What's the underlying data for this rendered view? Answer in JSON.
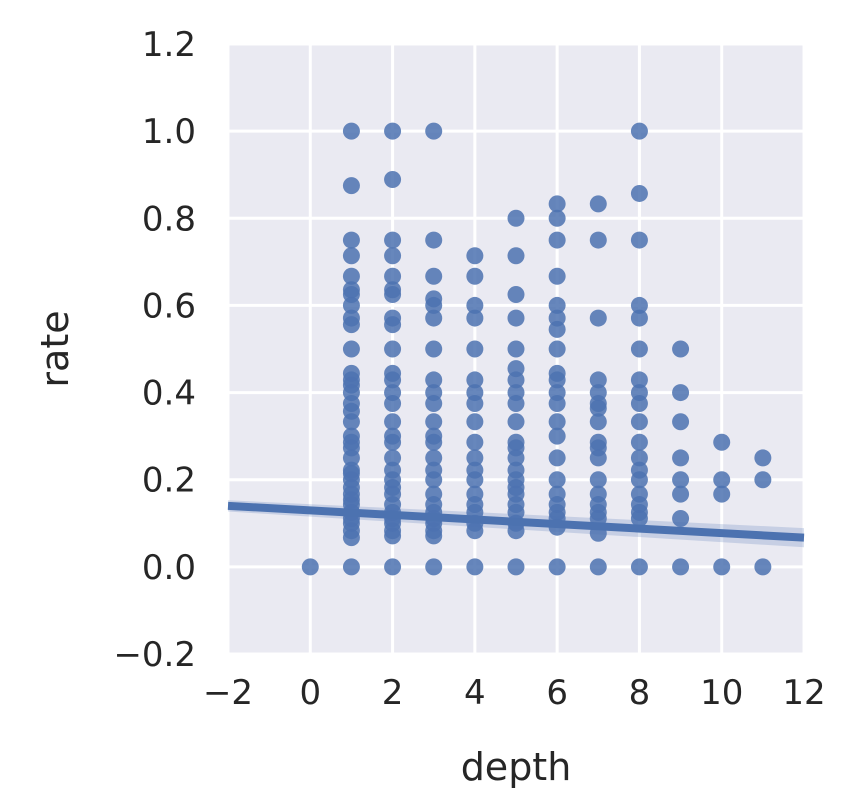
{
  "chart_data": {
    "type": "scatter",
    "xlabel": "depth",
    "ylabel": "rate",
    "xlim": [
      -2,
      12
    ],
    "ylim": [
      -0.2,
      1.2
    ],
    "xticks": [
      -2,
      0,
      2,
      4,
      6,
      8,
      10,
      12
    ],
    "yticks": [
      -0.2,
      0.0,
      0.2,
      0.4,
      0.6,
      0.8,
      1.0,
      1.2
    ],
    "xtick_labels": [
      "−2",
      "0",
      "2",
      "4",
      "6",
      "8",
      "10",
      "12"
    ],
    "ytick_labels": [
      "−0.2",
      "0.0",
      "0.2",
      "0.4",
      "0.6",
      "0.8",
      "1.0",
      "1.2"
    ],
    "grid": true,
    "colors": {
      "background": "#eaeaf2",
      "grid": "#ffffff",
      "points": "#4c72b0",
      "band": "#4c72b0"
    },
    "series": [
      {
        "points": [
          [
            0,
            0.0
          ],
          [
            1,
            0.0
          ],
          [
            1,
            0.067
          ],
          [
            1,
            0.083
          ],
          [
            1,
            0.1
          ],
          [
            1,
            0.111
          ],
          [
            1,
            0.125
          ],
          [
            1,
            0.143
          ],
          [
            1,
            0.154
          ],
          [
            1,
            0.167
          ],
          [
            1,
            0.182
          ],
          [
            1,
            0.2
          ],
          [
            1,
            0.214
          ],
          [
            1,
            0.222
          ],
          [
            1,
            0.25
          ],
          [
            1,
            0.273
          ],
          [
            1,
            0.286
          ],
          [
            1,
            0.3
          ],
          [
            1,
            0.333
          ],
          [
            1,
            0.357
          ],
          [
            1,
            0.375
          ],
          [
            1,
            0.4
          ],
          [
            1,
            0.417
          ],
          [
            1,
            0.429
          ],
          [
            1,
            0.444
          ],
          [
            1,
            0.5
          ],
          [
            1,
            0.556
          ],
          [
            1,
            0.571
          ],
          [
            1,
            0.6
          ],
          [
            1,
            0.625
          ],
          [
            1,
            0.636
          ],
          [
            1,
            0.667
          ],
          [
            1,
            0.714
          ],
          [
            1,
            0.75
          ],
          [
            1,
            0.875
          ],
          [
            1,
            1.0
          ],
          [
            2,
            0.0
          ],
          [
            2,
            0.071
          ],
          [
            2,
            0.083
          ],
          [
            2,
            0.1
          ],
          [
            2,
            0.111
          ],
          [
            2,
            0.125
          ],
          [
            2,
            0.143
          ],
          [
            2,
            0.167
          ],
          [
            2,
            0.182
          ],
          [
            2,
            0.2
          ],
          [
            2,
            0.222
          ],
          [
            2,
            0.25
          ],
          [
            2,
            0.286
          ],
          [
            2,
            0.3
          ],
          [
            2,
            0.333
          ],
          [
            2,
            0.375
          ],
          [
            2,
            0.4
          ],
          [
            2,
            0.429
          ],
          [
            2,
            0.444
          ],
          [
            2,
            0.5
          ],
          [
            2,
            0.556
          ],
          [
            2,
            0.571
          ],
          [
            2,
            0.625
          ],
          [
            2,
            0.636
          ],
          [
            2,
            0.667
          ],
          [
            2,
            0.714
          ],
          [
            2,
            0.75
          ],
          [
            2,
            0.889
          ],
          [
            2,
            1.0
          ],
          [
            3,
            0.0
          ],
          [
            3,
            0.071
          ],
          [
            3,
            0.083
          ],
          [
            3,
            0.1
          ],
          [
            3,
            0.111
          ],
          [
            3,
            0.125
          ],
          [
            3,
            0.143
          ],
          [
            3,
            0.167
          ],
          [
            3,
            0.2
          ],
          [
            3,
            0.222
          ],
          [
            3,
            0.25
          ],
          [
            3,
            0.286
          ],
          [
            3,
            0.3
          ],
          [
            3,
            0.333
          ],
          [
            3,
            0.375
          ],
          [
            3,
            0.4
          ],
          [
            3,
            0.429
          ],
          [
            3,
            0.5
          ],
          [
            3,
            0.571
          ],
          [
            3,
            0.6
          ],
          [
            3,
            0.615
          ],
          [
            3,
            0.667
          ],
          [
            3,
            0.75
          ],
          [
            3,
            1.0
          ],
          [
            4,
            0.0
          ],
          [
            4,
            0.083
          ],
          [
            4,
            0.1
          ],
          [
            4,
            0.125
          ],
          [
            4,
            0.143
          ],
          [
            4,
            0.167
          ],
          [
            4,
            0.2
          ],
          [
            4,
            0.222
          ],
          [
            4,
            0.25
          ],
          [
            4,
            0.286
          ],
          [
            4,
            0.333
          ],
          [
            4,
            0.375
          ],
          [
            4,
            0.4
          ],
          [
            4,
            0.429
          ],
          [
            4,
            0.5
          ],
          [
            4,
            0.571
          ],
          [
            4,
            0.6
          ],
          [
            4,
            0.667
          ],
          [
            4,
            0.714
          ],
          [
            5,
            0.0
          ],
          [
            5,
            0.083
          ],
          [
            5,
            0.1
          ],
          [
            5,
            0.125
          ],
          [
            5,
            0.143
          ],
          [
            5,
            0.167
          ],
          [
            5,
            0.182
          ],
          [
            5,
            0.2
          ],
          [
            5,
            0.222
          ],
          [
            5,
            0.25
          ],
          [
            5,
            0.273
          ],
          [
            5,
            0.286
          ],
          [
            5,
            0.333
          ],
          [
            5,
            0.375
          ],
          [
            5,
            0.4
          ],
          [
            5,
            0.429
          ],
          [
            5,
            0.455
          ],
          [
            5,
            0.5
          ],
          [
            5,
            0.571
          ],
          [
            5,
            0.625
          ],
          [
            5,
            0.714
          ],
          [
            5,
            0.8
          ],
          [
            6,
            0.0
          ],
          [
            6,
            0.091
          ],
          [
            6,
            0.111
          ],
          [
            6,
            0.125
          ],
          [
            6,
            0.143
          ],
          [
            6,
            0.167
          ],
          [
            6,
            0.2
          ],
          [
            6,
            0.25
          ],
          [
            6,
            0.3
          ],
          [
            6,
            0.333
          ],
          [
            6,
            0.375
          ],
          [
            6,
            0.4
          ],
          [
            6,
            0.429
          ],
          [
            6,
            0.444
          ],
          [
            6,
            0.5
          ],
          [
            6,
            0.545
          ],
          [
            6,
            0.571
          ],
          [
            6,
            0.6
          ],
          [
            6,
            0.667
          ],
          [
            6,
            0.75
          ],
          [
            6,
            0.8
          ],
          [
            6,
            0.833
          ],
          [
            7,
            0.0
          ],
          [
            7,
            0.077
          ],
          [
            7,
            0.111
          ],
          [
            7,
            0.125
          ],
          [
            7,
            0.143
          ],
          [
            7,
            0.167
          ],
          [
            7,
            0.2
          ],
          [
            7,
            0.25
          ],
          [
            7,
            0.273
          ],
          [
            7,
            0.286
          ],
          [
            7,
            0.333
          ],
          [
            7,
            0.364
          ],
          [
            7,
            0.375
          ],
          [
            7,
            0.4
          ],
          [
            7,
            0.429
          ],
          [
            7,
            0.571
          ],
          [
            7,
            0.75
          ],
          [
            7,
            0.833
          ],
          [
            8,
            0.0
          ],
          [
            8,
            0.111
          ],
          [
            8,
            0.125
          ],
          [
            8,
            0.143
          ],
          [
            8,
            0.167
          ],
          [
            8,
            0.2
          ],
          [
            8,
            0.222
          ],
          [
            8,
            0.25
          ],
          [
            8,
            0.286
          ],
          [
            8,
            0.333
          ],
          [
            8,
            0.375
          ],
          [
            8,
            0.4
          ],
          [
            8,
            0.429
          ],
          [
            8,
            0.5
          ],
          [
            8,
            0.571
          ],
          [
            8,
            0.6
          ],
          [
            8,
            0.75
          ],
          [
            8,
            0.857
          ],
          [
            8,
            1.0
          ],
          [
            9,
            0.0
          ],
          [
            9,
            0.111
          ],
          [
            9,
            0.167
          ],
          [
            9,
            0.2
          ],
          [
            9,
            0.25
          ],
          [
            9,
            0.333
          ],
          [
            9,
            0.4
          ],
          [
            9,
            0.5
          ],
          [
            10,
            0.0
          ],
          [
            10,
            0.167
          ],
          [
            10,
            0.2
          ],
          [
            10,
            0.286
          ],
          [
            11,
            0.0
          ],
          [
            11,
            0.2
          ],
          [
            11,
            0.25
          ]
        ]
      }
    ],
    "regression": {
      "x": [
        -2,
        12
      ],
      "y": [
        0.14,
        0.067
      ],
      "ci_lower": [
        0.127,
        0.045
      ],
      "ci_upper": [
        0.153,
        0.089
      ]
    }
  }
}
